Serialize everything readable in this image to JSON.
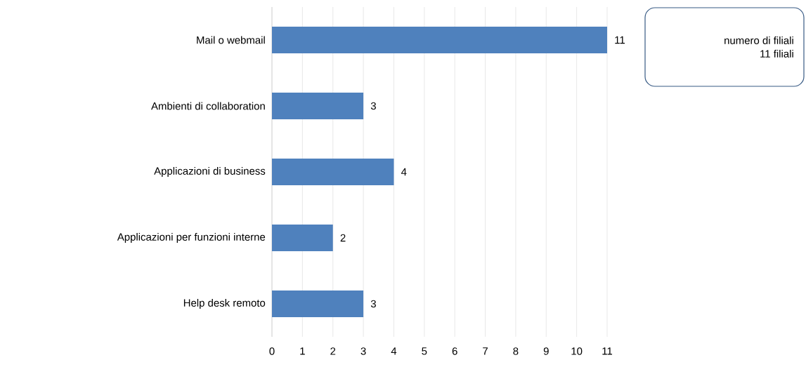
{
  "chart_data": {
    "type": "bar",
    "orientation": "horizontal",
    "categories": [
      "Mail o webmail",
      "Ambienti di collaboration",
      "Applicazioni di business",
      "Applicazioni per funzioni interne",
      "Help desk remoto"
    ],
    "values": [
      11,
      3,
      4,
      2,
      3
    ],
    "color": "#4f81bd",
    "xlim": [
      0,
      11
    ],
    "xticks": [
      0,
      1,
      2,
      3,
      4,
      5,
      6,
      7,
      8,
      9,
      10,
      11
    ],
    "grid": "x",
    "data_labels": true,
    "annotations": [
      "numero di filiali",
      "11 filiali"
    ]
  }
}
